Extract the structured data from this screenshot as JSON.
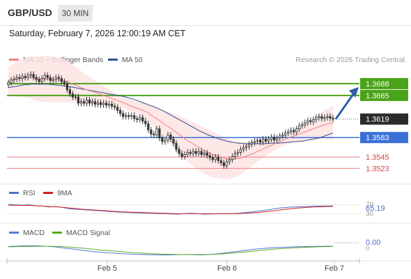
{
  "header": {
    "symbol": "GBP/USD",
    "timeframe": "30 MIN"
  },
  "datetime": "Saturday, February 7, 2026 12:00:19 AM CET",
  "legend": {
    "ma20_label": "MA 20 + Bollinger Bands",
    "ma50_label": "MA 50",
    "rsi_label": "RSI",
    "rsi_ma_label": "9MA",
    "macd_label": "MACD",
    "macd_signal_label": "MACD Signal"
  },
  "credit": "Research © 2026 Trading Central",
  "colors": {
    "candle": "#333333",
    "ma20": "#f08080",
    "bollinger_fill": "#fde3e3",
    "ma50": "#2f4f8f",
    "resistance": "#4aa318",
    "support_main": "#3a6fd8",
    "support_minor": "#f08080",
    "arrow": "#2d5fa8",
    "rsi": "#4a6fd0",
    "rsi_ma": "#d62020",
    "macd": "#5577dd",
    "macd_signal": "#55aa22"
  },
  "chart_data": [
    {
      "type": "candlestick",
      "title": "GBP/USD",
      "x_ticks": [
        "Feb 5",
        "Feb 6",
        "Feb 7"
      ],
      "ylim": [
        1.3495,
        1.3715
      ],
      "last_price": 1.3619,
      "levels": [
        {
          "value": 1.3688,
          "label": "1.3688",
          "kind": "resistance"
        },
        {
          "value": 1.3665,
          "label": "1.3665",
          "kind": "resistance"
        },
        {
          "value": 1.3583,
          "label": "1.3583",
          "kind": "support"
        },
        {
          "value": 1.3545,
          "label": "1.3545",
          "kind": "support"
        },
        {
          "value": 1.3523,
          "label": "1.3523",
          "kind": "support"
        }
      ],
      "close": [
        1.369,
        1.3695,
        1.3697,
        1.37,
        1.3698,
        1.3702,
        1.37,
        1.3704,
        1.3706,
        1.37,
        1.3696,
        1.3692,
        1.3698,
        1.3704,
        1.37,
        1.3694,
        1.3696,
        1.37,
        1.3698,
        1.3692,
        1.3688,
        1.3676,
        1.3668,
        1.3662,
        1.3662,
        1.365,
        1.3653,
        1.365,
        1.3656,
        1.365,
        1.3653,
        1.3648,
        1.3651,
        1.3647,
        1.365,
        1.3646,
        1.3648,
        1.3644,
        1.3642,
        1.3636,
        1.363,
        1.3624,
        1.3626,
        1.3624,
        1.3626,
        1.362,
        1.3618,
        1.3622,
        1.3615,
        1.361,
        1.3598,
        1.359,
        1.3588,
        1.36,
        1.3582,
        1.3575,
        1.3578,
        1.3588,
        1.358,
        1.3572,
        1.356,
        1.3552,
        1.3546,
        1.355,
        1.3554,
        1.3552,
        1.3556,
        1.3552,
        1.3556,
        1.355,
        1.3553,
        1.3548,
        1.3544,
        1.354,
        1.3545,
        1.3538,
        1.3534,
        1.3528,
        1.3536,
        1.354,
        1.3546,
        1.3552,
        1.3554,
        1.356,
        1.3563,
        1.3566,
        1.357,
        1.3573,
        1.3576,
        1.3578,
        1.3574,
        1.358,
        1.3576,
        1.358,
        1.3584,
        1.3578,
        1.3582,
        1.3586,
        1.3588,
        1.3592,
        1.3594,
        1.3597,
        1.3594,
        1.36,
        1.3606,
        1.3608,
        1.3612,
        1.3616,
        1.3614,
        1.3618,
        1.3622,
        1.3624,
        1.362,
        1.3622,
        1.3624,
        1.3621,
        1.3619
      ],
      "ma20": [
        1.3692,
        1.3694,
        1.3695,
        1.3697,
        1.3698,
        1.3699,
        1.3699,
        1.37,
        1.37,
        1.3699,
        1.3698,
        1.3697,
        1.3697,
        1.3697,
        1.3697,
        1.3697,
        1.3696,
        1.3696,
        1.3695,
        1.3695,
        1.3694,
        1.3692,
        1.369,
        1.3687,
        1.3685,
        1.3683,
        1.368,
        1.3678,
        1.3676,
        1.3674,
        1.3673,
        1.3671,
        1.3669,
        1.3667,
        1.3665,
        1.3663,
        1.3661,
        1.3659,
        1.3657,
        1.3655,
        1.3653,
        1.3651,
        1.3649,
        1.3646,
        1.3644,
        1.3642,
        1.364,
        1.3638,
        1.3636,
        1.3634,
        1.3631,
        1.3627,
        1.3623,
        1.362,
        1.3616,
        1.3612,
        1.3608,
        1.3605,
        1.3601,
        1.3597,
        1.3593,
        1.3589,
        1.3585,
        1.3581,
        1.3577,
        1.3574,
        1.3571,
        1.3567,
        1.3564,
        1.3561,
        1.3558,
        1.3555,
        1.3553,
        1.355,
        1.3549,
        1.3547,
        1.3545,
        1.3543,
        1.3542,
        1.3541,
        1.3541,
        1.3541,
        1.3542,
        1.3543,
        1.3545,
        1.3547,
        1.3549,
        1.3551,
        1.3553,
        1.3556,
        1.3558,
        1.3561,
        1.3563,
        1.3566,
        1.3568,
        1.3571,
        1.3573,
        1.3575,
        1.3577,
        1.358,
        1.3582,
        1.3584,
        1.3586,
        1.3588,
        1.359,
        1.3592,
        1.3594,
        1.3596,
        1.3598,
        1.36,
        1.3602,
        1.3604,
        1.3606,
        1.3608,
        1.3609,
        1.3611,
        1.3612
      ],
      "bollinger_width": 0.0028,
      "ma50": [
        1.368,
        1.3681,
        1.3682,
        1.3683,
        1.3684,
        1.3685,
        1.3686,
        1.3686,
        1.3687,
        1.3687,
        1.3687,
        1.3687,
        1.3687,
        1.3687,
        1.3687,
        1.3686,
        1.3686,
        1.3685,
        1.3685,
        1.3684,
        1.3684,
        1.3683,
        1.3682,
        1.3681,
        1.368,
        1.3679,
        1.3678,
        1.3677,
        1.3676,
        1.3675,
        1.3674,
        1.3673,
        1.3672,
        1.3671,
        1.367,
        1.3669,
        1.3668,
        1.3667,
        1.3666,
        1.3665,
        1.3664,
        1.3663,
        1.3662,
        1.366,
        1.3659,
        1.3657,
        1.3655,
        1.3653,
        1.3651,
        1.3649,
        1.3647,
        1.3645,
        1.3643,
        1.3641,
        1.3638,
        1.3636,
        1.3633,
        1.363,
        1.3627,
        1.3624,
        1.3621,
        1.3618,
        1.3615,
        1.3612,
        1.3609,
        1.3606,
        1.3603,
        1.36,
        1.3597,
        1.3594,
        1.3592,
        1.3589,
        1.3587,
        1.3585,
        1.3583,
        1.3581,
        1.3579,
        1.3578,
        1.3576,
        1.3575,
        1.3574,
        1.3573,
        1.3572,
        1.3572,
        1.3571,
        1.3571,
        1.3571,
        1.3571,
        1.3571,
        1.3571,
        1.3571,
        1.3571,
        1.3571,
        1.3572,
        1.3572,
        1.3572,
        1.3572,
        1.3572,
        1.3573,
        1.3573,
        1.3574,
        1.3574,
        1.3575,
        1.3575,
        1.3576,
        1.3576,
        1.3577,
        1.3578,
        1.3579,
        1.358,
        1.3581,
        1.3582,
        1.3584,
        1.3586,
        1.3588,
        1.359,
        1.3592
      ]
    },
    {
      "type": "line",
      "title": "RSI",
      "value_label": "65.19",
      "levels": [
        "70",
        "30"
      ],
      "ylim": [
        0,
        100
      ],
      "series": [
        {
          "name": "RSI",
          "values": [
            72,
            70,
            68,
            70,
            66,
            64,
            60,
            62,
            58,
            52,
            50,
            48,
            46,
            44,
            42,
            40,
            38,
            36,
            35,
            34,
            33,
            32,
            31,
            30,
            29,
            28,
            30,
            32,
            30,
            28,
            29,
            30,
            31,
            30,
            32,
            35,
            38,
            42,
            46,
            50,
            55,
            58,
            60,
            61,
            62,
            63,
            64,
            65,
            65
          ]
        },
        {
          "name": "9MA",
          "values": [
            68,
            68,
            67,
            67,
            66,
            64,
            62,
            61,
            59,
            56,
            53,
            50,
            48,
            46,
            44,
            42,
            40,
            38,
            37,
            36,
            35,
            34,
            33,
            32,
            31,
            30,
            30,
            30,
            30,
            30,
            30,
            30,
            30,
            30,
            31,
            32,
            34,
            36,
            39,
            42,
            46,
            50,
            53,
            56,
            58,
            60,
            61,
            62,
            63
          ]
        }
      ]
    },
    {
      "type": "line",
      "title": "MACD",
      "value_label": "0.00",
      "levels": [
        "0"
      ],
      "series": [
        {
          "name": "MACD",
          "values": [
            2,
            2.2,
            2.4,
            2.5,
            2.4,
            2.2,
            1.8,
            1.2,
            0.6,
            0,
            -0.6,
            -1.2,
            -1.6,
            -2,
            -2.3,
            -2.6,
            -2.8,
            -3,
            -3.1,
            -3.2,
            -3.3,
            -3.2,
            -3.1,
            -3,
            -3.1,
            -3.2,
            -3,
            -2.6,
            -2,
            -1.4,
            -0.8,
            -0.2,
            0.4,
            0.8,
            1.2,
            1.4,
            1.6,
            1.8,
            1.9,
            2,
            2.1,
            2.2,
            2.2
          ]
        },
        {
          "name": "MACD Signal",
          "values": [
            1.8,
            1.9,
            2,
            2.1,
            2.2,
            2.2,
            2.1,
            1.9,
            1.6,
            1.2,
            0.8,
            0.3,
            -0.2,
            -0.6,
            -1,
            -1.4,
            -1.8,
            -2.1,
            -2.4,
            -2.6,
            -2.8,
            -2.9,
            -3,
            -3,
            -3,
            -3,
            -3,
            -2.8,
            -2.5,
            -2.1,
            -1.7,
            -1.2,
            -0.7,
            -0.2,
            0.2,
            0.6,
            0.9,
            1.2,
            1.4,
            1.6,
            1.8,
            1.9,
            2
          ]
        }
      ]
    }
  ]
}
